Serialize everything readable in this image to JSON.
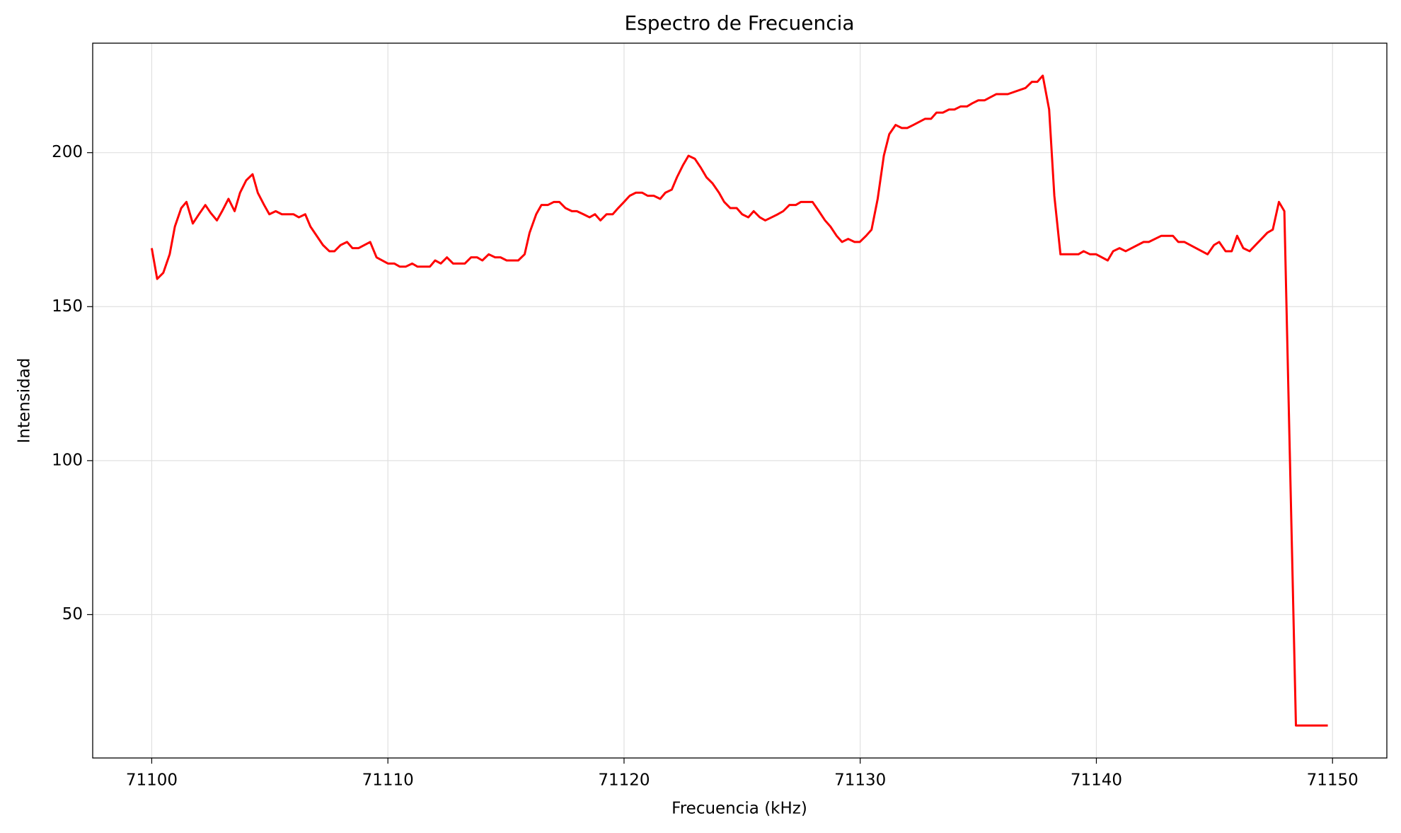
{
  "chart_data": {
    "type": "line",
    "title": "Espectro de Frecuencia",
    "x_label": "Frecuencia (kHz)",
    "y_label": "Intensidad",
    "x": [
      71100,
      71100.23,
      71100.49,
      71100.76,
      71100.98,
      71101.25,
      71101.47,
      71101.74,
      71102,
      71102.27,
      71102.49,
      71102.76,
      71102.98,
      71103.25,
      71103.51,
      71103.74,
      71104,
      71104.27,
      71104.49,
      71104.76,
      71104.98,
      71105.25,
      71105.51,
      71106,
      71106.23,
      71106.5,
      71106.72,
      71107.25,
      71107.52,
      71107.74,
      71108,
      71108.27,
      71108.5,
      71108.76,
      71109.25,
      71109.52,
      71110,
      71110.27,
      71110.5,
      71110.76,
      71111.03,
      71111.25,
      71111.78,
      71112,
      71112.24,
      71112.5,
      71112.76,
      71113.26,
      71113.52,
      71113.78,
      71114,
      71114.27,
      71114.54,
      71114.77,
      71115.03,
      71115.52,
      71115.79,
      71116,
      71116.28,
      71116.5,
      71116.77,
      71117.03,
      71117.26,
      71117.52,
      71117.79,
      71118,
      71118.28,
      71118.54,
      71118.77,
      71119,
      71119.26,
      71119.52,
      71119.75,
      71120,
      71120.24,
      71120.5,
      71120.77,
      71121,
      71121.26,
      71121.53,
      71121.75,
      71122.02,
      71122.24,
      71122.5,
      71122.73,
      71123,
      71123.26,
      71123.49,
      71123.75,
      71124.02,
      71124.24,
      71124.5,
      71124.77,
      71125,
      71125.26,
      71125.49,
      71125.75,
      71125.98,
      71126.25,
      71126.51,
      71126.74,
      71127,
      71127.27,
      71127.49,
      71127.98,
      71128.25,
      71128.51,
      71128.74,
      71129,
      71129.23,
      71129.49,
      71129.76,
      71129.98,
      71130.25,
      71130.48,
      71130.74,
      71131,
      71131.23,
      71131.5,
      71131.76,
      71131.99,
      71132.25,
      71132.75,
      71133,
      71133.23,
      71133.5,
      71133.76,
      71133.99,
      71134.25,
      71134.52,
      71134.74,
      71135,
      71135.27,
      71135.76,
      71136.25,
      71137,
      71137.27,
      71137.5,
      71137.73,
      71138,
      71138.22,
      71138.48,
      71139.24,
      71139.46,
      71139.73,
      71139.99,
      71140.48,
      71140.71,
      71140.98,
      71141.24,
      71142,
      71142.22,
      71142.75,
      71143.24,
      71143.47,
      71143.73,
      71144.71,
      71144.98,
      71145.2,
      71145.47,
      71145.73,
      71145.96,
      71146.22,
      71146.49,
      71147.24,
      71147.47,
      71147.73,
      71147.96,
      71148.45,
      71149.8
    ],
    "series": [
      {
        "name": "Intensidad",
        "color": "#ff0000",
        "values": [
          169,
          159,
          161,
          167,
          176,
          182,
          184,
          177,
          180,
          183,
          180.5,
          178,
          181,
          185,
          181,
          187,
          191,
          193,
          187,
          183,
          180,
          181,
          180,
          180,
          179,
          180,
          176,
          170,
          168,
          168,
          170,
          171,
          169,
          169,
          171,
          166,
          164,
          164,
          163,
          163,
          164,
          163,
          163,
          165,
          164,
          166,
          164,
          164,
          166,
          166,
          165,
          167,
          166,
          166,
          165,
          165,
          167,
          174,
          180,
          183,
          183,
          184,
          184,
          182,
          181,
          181,
          180,
          179,
          180,
          178,
          180,
          180,
          182,
          184,
          186,
          187,
          187,
          186,
          186,
          185,
          187,
          188,
          192,
          196,
          199,
          198,
          195,
          192,
          190,
          187,
          184,
          182,
          182,
          180,
          179,
          181,
          179,
          178,
          179,
          180,
          181,
          183,
          183,
          184,
          184,
          181,
          178,
          176,
          173,
          171,
          172,
          171,
          171,
          173,
          175,
          185,
          199,
          206,
          209,
          208,
          208,
          209,
          211,
          211,
          213,
          213,
          214,
          214,
          215,
          215,
          216,
          217,
          217,
          219,
          219,
          221,
          223,
          223,
          225,
          214,
          186,
          167,
          167,
          168,
          167,
          167,
          165,
          168,
          169,
          168,
          171,
          171,
          173,
          173,
          171,
          171,
          167,
          170,
          171,
          168,
          168,
          173,
          169,
          168,
          174,
          175,
          184,
          181,
          14,
          14
        ]
      }
    ],
    "xlim": [
      71097.5,
      71152.3
    ],
    "ylim": [
      3.45,
      235.55
    ],
    "xticks": [
      71100,
      71110,
      71120,
      71130,
      71140,
      71150
    ],
    "yticks": [
      50,
      100,
      150,
      200
    ],
    "grid": true
  }
}
